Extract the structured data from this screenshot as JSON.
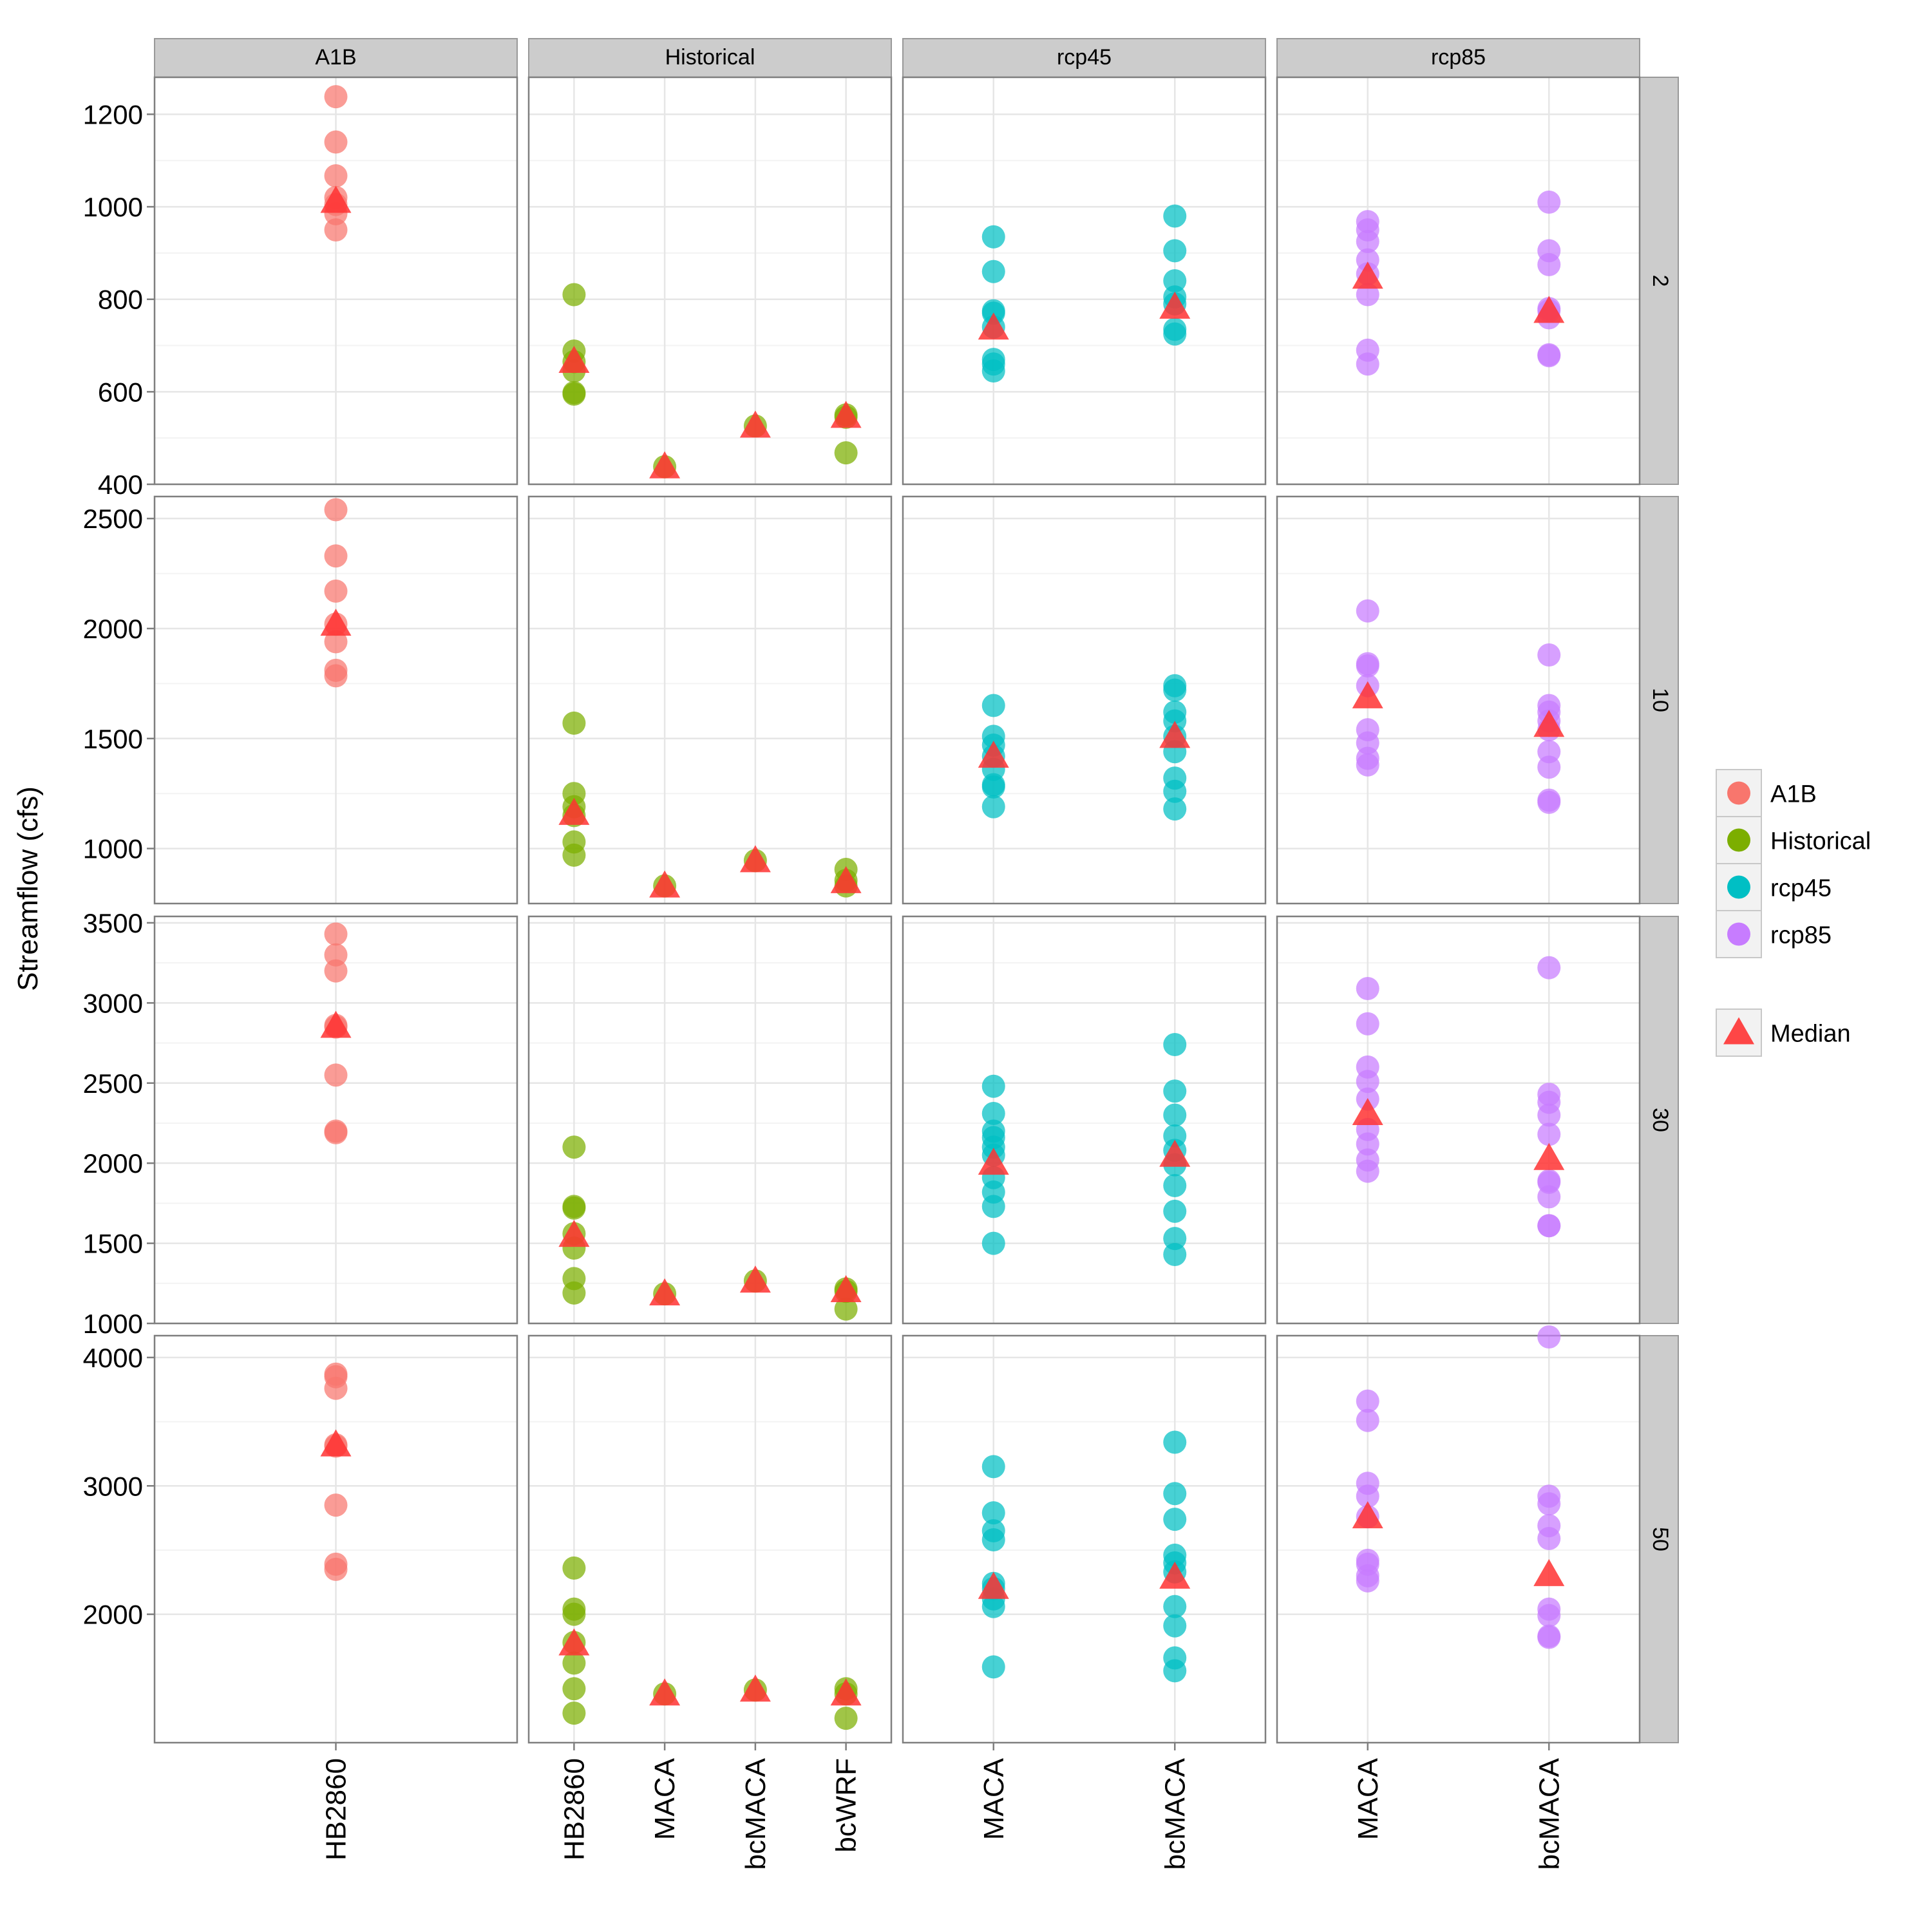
{
  "chart_data": {
    "type": "scatter",
    "ylabel": "Streamflow (cfs)",
    "column_panels": [
      {
        "label": "A1B",
        "categories": [
          "HB2860"
        ]
      },
      {
        "label": "Historical",
        "categories": [
          "HB2860",
          "MACA",
          "bcMACA",
          "bcWRF"
        ]
      },
      {
        "label": "rcp45",
        "categories": [
          "MACA",
          "bcMACA"
        ]
      },
      {
        "label": "rcp85",
        "categories": [
          "MACA",
          "bcMACA"
        ]
      }
    ],
    "row_panels": [
      {
        "label": "2",
        "ylim": [
          400,
          1280
        ],
        "yticks": [
          400,
          600,
          800,
          1000,
          1200
        ]
      },
      {
        "label": "10",
        "ylim": [
          750,
          2600
        ],
        "yticks": [
          1000,
          1500,
          2000,
          2500
        ]
      },
      {
        "label": "30",
        "ylim": [
          1000,
          3540
        ],
        "yticks": [
          1000,
          1500,
          2000,
          2500,
          3000,
          3500
        ]
      },
      {
        "label": "50",
        "ylim": [
          1000,
          4170
        ],
        "yticks": [
          2000,
          3000,
          4000
        ]
      }
    ],
    "legend": {
      "placement": "right",
      "entries": [
        {
          "label": "A1B",
          "color": "#F8766D",
          "shape": "circle"
        },
        {
          "label": "Historical",
          "color": "#7CAE00",
          "shape": "circle"
        },
        {
          "label": "rcp45",
          "color": "#00BFC4",
          "shape": "circle"
        },
        {
          "label": "rcp85",
          "color": "#C77CFF",
          "shape": "circle"
        }
      ],
      "median_entry": {
        "label": "Median",
        "color": "#FF3333",
        "shape": "triangle"
      }
    },
    "grid": true,
    "panels": [
      {
        "row": 0,
        "col": 0,
        "series": [
          {
            "category": "HB2860",
            "values": [
              1238,
              1140,
              1067,
              1020,
              1005,
              985,
              950
            ],
            "median": 1012
          }
        ]
      },
      {
        "row": 0,
        "col": 1,
        "series": [
          {
            "category": "HB2860",
            "values": [
              810,
              688,
              665,
              645,
              598,
              595
            ],
            "median": 666
          },
          {
            "category": "MACA",
            "values": [
              438
            ],
            "median": 438
          },
          {
            "category": "bcMACA",
            "values": [
              526
            ],
            "median": 526
          },
          {
            "category": "bcWRF",
            "values": [
              550,
              545,
              468
            ],
            "median": 547
          }
        ]
      },
      {
        "row": 0,
        "col": 2,
        "series": [
          {
            "category": "MACA",
            "values": [
              935,
              860,
              775,
              770,
              740,
              670,
              660,
              645
            ],
            "median": 738
          },
          {
            "category": "bcMACA",
            "values": [
              980,
              905,
              840,
              805,
              790,
              735,
              725
            ],
            "median": 783
          }
        ]
      },
      {
        "row": 0,
        "col": 3,
        "series": [
          {
            "category": "MACA",
            "values": [
              968,
              950,
              925,
              885,
              855,
              810,
              690,
              660
            ],
            "median": 848
          },
          {
            "category": "bcMACA",
            "values": [
              1010,
              905,
              875,
              780,
              775,
              760,
              680,
              678
            ],
            "median": 774
          }
        ]
      },
      {
        "row": 1,
        "col": 0,
        "series": [
          {
            "category": "HB2860",
            "values": [
              2540,
              2330,
              2170,
              2020,
              1940,
              1810,
              1785
            ],
            "median": 2020
          }
        ]
      },
      {
        "row": 1,
        "col": 1,
        "series": [
          {
            "category": "HB2860",
            "values": [
              1570,
              1250,
              1190,
              1150,
              1030,
              970
            ],
            "median": 1160
          },
          {
            "category": "MACA",
            "values": [
              830
            ],
            "median": 830
          },
          {
            "category": "bcMACA",
            "values": [
              945
            ],
            "median": 945
          },
          {
            "category": "bcWRF",
            "values": [
              905,
              855,
              830
            ],
            "median": 850
          }
        ]
      },
      {
        "row": 1,
        "col": 2,
        "series": [
          {
            "category": "MACA",
            "values": [
              1650,
              1510,
              1470,
              1420,
              1360,
              1290,
              1280,
              1190
            ],
            "median": 1420
          },
          {
            "category": "bcMACA",
            "values": [
              1740,
              1720,
              1620,
              1580,
              1510,
              1440,
              1320,
              1260,
              1180
            ],
            "median": 1510
          }
        ]
      },
      {
        "row": 1,
        "col": 3,
        "series": [
          {
            "category": "MACA",
            "values": [
              2080,
              1840,
              1830,
              1740,
              1540,
              1480,
              1410,
              1380
            ],
            "median": 1690
          },
          {
            "category": "bcMACA",
            "values": [
              1880,
              1650,
              1620,
              1580,
              1540,
              1440,
              1370,
              1220,
              1210
            ],
            "median": 1560
          }
        ]
      },
      {
        "row": 2,
        "col": 0,
        "series": [
          {
            "category": "HB2860",
            "values": [
              3430,
              3300,
              3200,
              2860,
              2850,
              2550,
              2200,
              2190
            ],
            "median": 2855
          }
        ]
      },
      {
        "row": 2,
        "col": 1,
        "series": [
          {
            "category": "HB2860",
            "values": [
              2100,
              1730,
              1720,
              1560,
              1470,
              1280,
              1190
            ],
            "median": 1550
          },
          {
            "category": "MACA",
            "values": [
              1185
            ],
            "median": 1185
          },
          {
            "category": "bcMACA",
            "values": [
              1265
            ],
            "median": 1265
          },
          {
            "category": "bcWRF",
            "values": [
              1215,
              1200,
              1090
            ],
            "median": 1205
          }
        ]
      },
      {
        "row": 2,
        "col": 2,
        "series": [
          {
            "category": "MACA",
            "values": [
              2480,
              2310,
              2200,
              2160,
              2100,
              2050,
              1910,
              1820,
              1730,
              1500
            ],
            "median": 2000
          },
          {
            "category": "bcMACA",
            "values": [
              2740,
              2450,
              2300,
              2170,
              2080,
              1990,
              1860,
              1700,
              1530,
              1430
            ],
            "median": 2050
          }
        ]
      },
      {
        "row": 2,
        "col": 3,
        "series": [
          {
            "category": "MACA",
            "values": [
              3090,
              2870,
              2600,
              2510,
              2400,
              2210,
              2120,
              2020,
              1950
            ],
            "median": 2310
          },
          {
            "category": "bcMACA",
            "values": [
              3220,
              2430,
              2380,
              2300,
              2180,
              1890,
              1880,
              1790,
              1610,
              1610
            ],
            "median": 2030
          }
        ]
      },
      {
        "row": 3,
        "col": 0,
        "series": [
          {
            "category": "HB2860",
            "values": [
              3870,
              3850,
              3760,
              3320,
              3310,
              2850,
              2390,
              2350
            ],
            "median": 3320
          }
        ]
      },
      {
        "row": 3,
        "col": 1,
        "series": [
          {
            "category": "HB2860",
            "values": [
              2360,
              2040,
              2000,
              1780,
              1620,
              1420,
              1230
            ],
            "median": 1770
          },
          {
            "category": "MACA",
            "values": [
              1380
            ],
            "median": 1380
          },
          {
            "category": "bcMACA",
            "values": [
              1410
            ],
            "median": 1410
          },
          {
            "category": "bcWRF",
            "values": [
              1420,
              1380,
              1190
            ],
            "median": 1380
          }
        ]
      },
      {
        "row": 3,
        "col": 2,
        "series": [
          {
            "category": "MACA",
            "values": [
              3150,
              2790,
              2650,
              2580,
              2240,
              2200,
              2120,
              2060,
              1590
            ],
            "median": 2210
          },
          {
            "category": "bcMACA",
            "values": [
              3340,
              2940,
              2740,
              2460,
              2400,
              2330,
              2060,
              1910,
              1660,
              1560
            ],
            "median": 2290
          }
        ]
      },
      {
        "row": 3,
        "col": 3,
        "series": [
          {
            "category": "MACA",
            "values": [
              3660,
              3510,
              3020,
              2920,
              2760,
              2420,
              2390,
              2300,
              2260
            ],
            "median": 2760
          },
          {
            "category": "bcMACA",
            "values": [
              4160,
              2920,
              2860,
              2690,
              2590,
              2040,
              1990,
              1830,
              1820
            ],
            "median": 2310
          }
        ]
      }
    ]
  }
}
